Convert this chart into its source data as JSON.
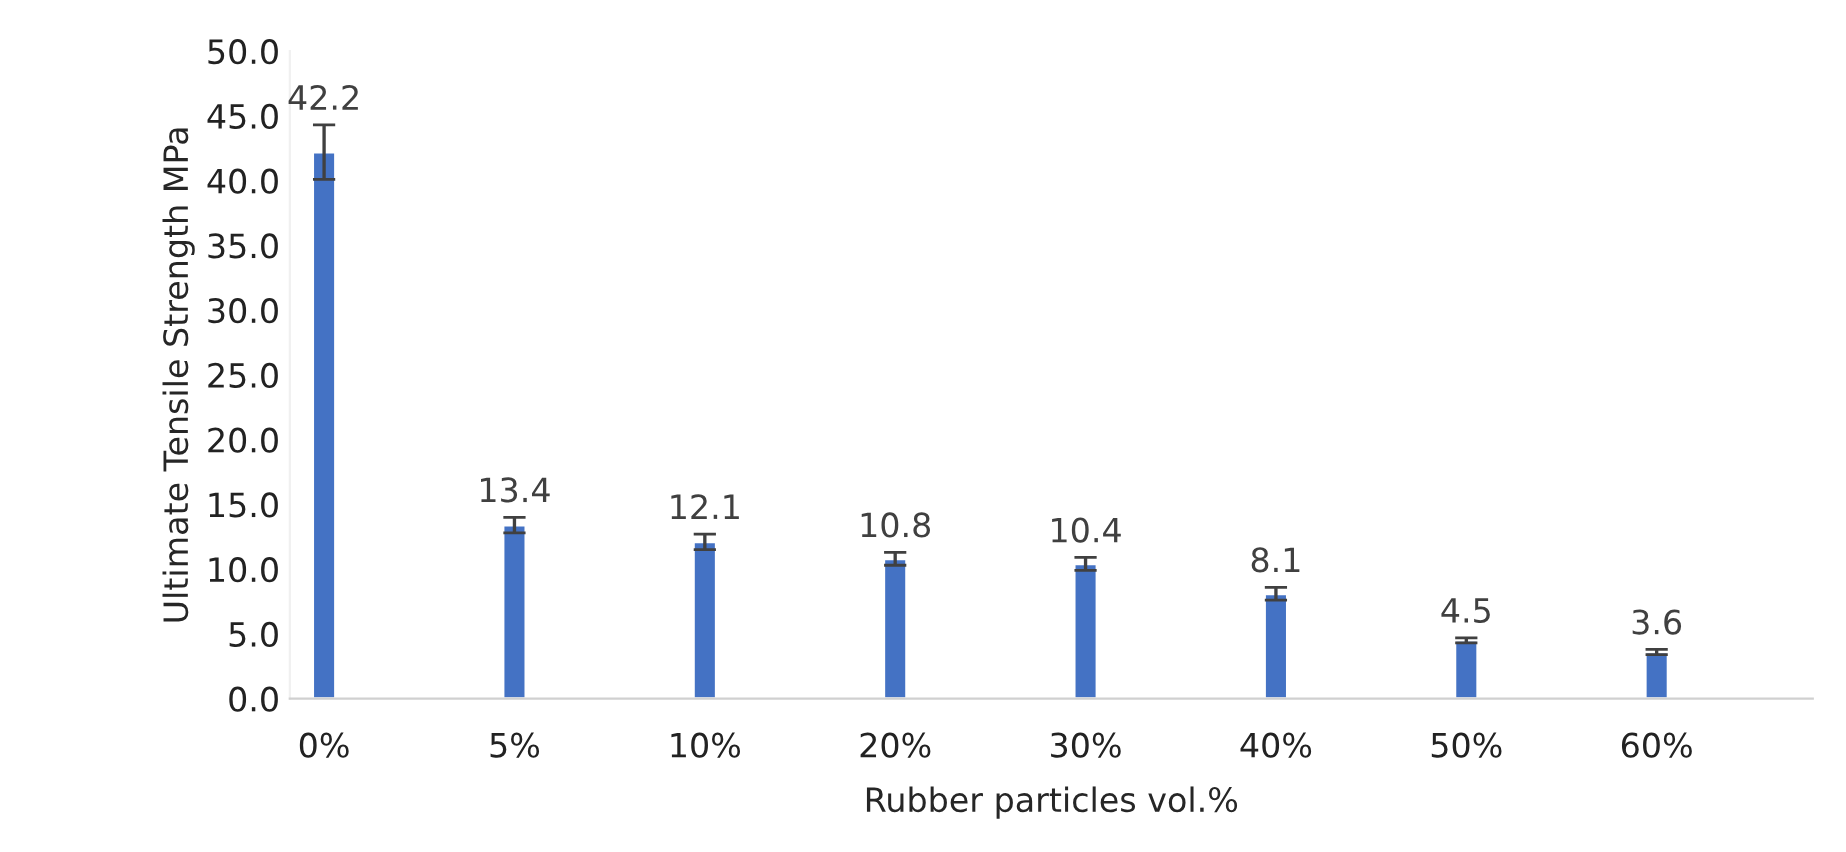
{
  "chart_data": {
    "type": "bar",
    "xlabel": "Rubber particles vol.%",
    "ylabel": "Ultimate Tensile Strength MPa",
    "categories": [
      "0%",
      "5%",
      "10%",
      "20%",
      "30%",
      "40%",
      "50%",
      "60%"
    ],
    "values": [
      42.2,
      13.4,
      12.1,
      10.8,
      10.4,
      8.1,
      4.5,
      3.6
    ],
    "errors": [
      2.1,
      0.6,
      0.6,
      0.5,
      0.5,
      0.5,
      0.2,
      0.2
    ],
    "color": "#4472c4",
    "data_labels": true,
    "grid": false,
    "legend": false,
    "ylim": [
      0,
      50
    ],
    "yticks": [
      {
        "value": 0,
        "label": "0.0"
      },
      {
        "value": 5,
        "label": "5.0"
      },
      {
        "value": 10,
        "label": "10.0"
      },
      {
        "value": 15,
        "label": "15.0"
      },
      {
        "value": 20,
        "label": "20.0"
      },
      {
        "value": 25,
        "label": "25.0"
      },
      {
        "value": 30,
        "label": "30.0"
      },
      {
        "value": 35,
        "label": "35.0"
      },
      {
        "value": 40,
        "label": "40.0"
      },
      {
        "value": 45,
        "label": "45.0"
      },
      {
        "value": 50,
        "label": "50.0"
      }
    ]
  }
}
